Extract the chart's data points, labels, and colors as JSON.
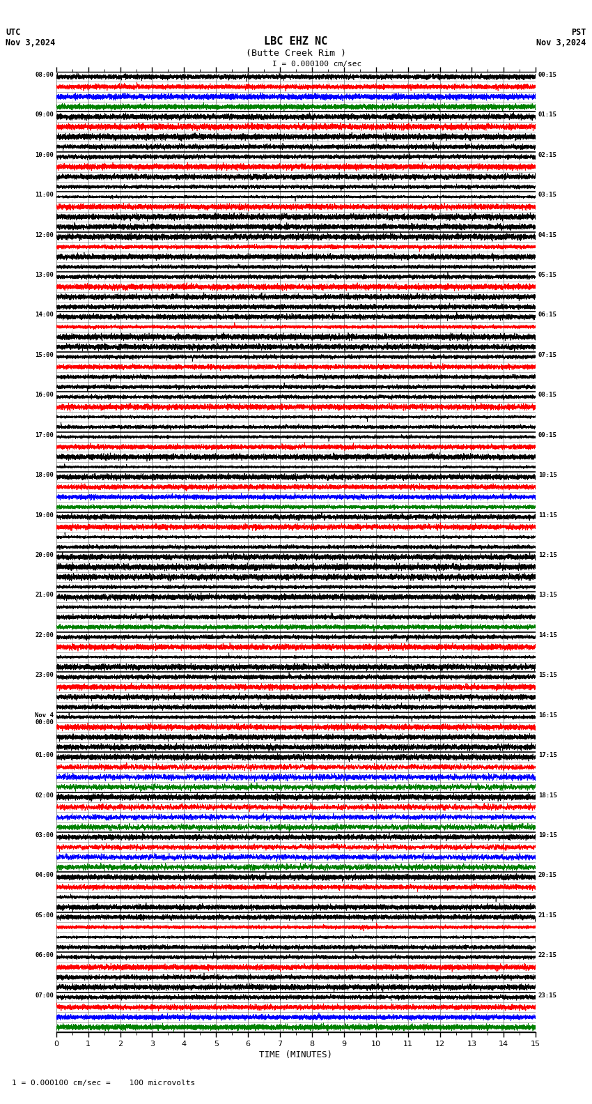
{
  "title_line1": "LBC EHZ NC",
  "title_line2": "(Butte Creek Rim )",
  "scale_label": "I = 0.000100 cm/sec",
  "left_label_top": "UTC",
  "left_label_date": "Nov 3,2024",
  "right_label_top": "PST",
  "right_label_date": "Nov 3,2024",
  "bottom_label": "TIME (MINUTES)",
  "footer_label": "1 = 0.000100 cm/sec =    100 microvolts",
  "background_color": "#ffffff",
  "grid_color_major": "#888888",
  "grid_color_minor": "#bbbbbb",
  "trace_color_black": "#000000",
  "trace_color_red": "#ff0000",
  "trace_color_blue": "#0000ff",
  "trace_color_green": "#008000",
  "num_minutes": 15,
  "num_rows": 24,
  "sub_traces_per_row": 4,
  "left_labels_utc": [
    "08:00",
    "09:00",
    "10:00",
    "11:00",
    "12:00",
    "13:00",
    "14:00",
    "15:00",
    "16:00",
    "17:00",
    "18:00",
    "19:00",
    "20:00",
    "21:00",
    "22:00",
    "23:00",
    "Nov 4\n00:00",
    "01:00",
    "02:00",
    "03:00",
    "04:00",
    "05:00",
    "06:00",
    "07:00"
  ],
  "right_labels_pst": [
    "00:15",
    "01:15",
    "02:15",
    "03:15",
    "04:15",
    "05:15",
    "06:15",
    "07:15",
    "08:15",
    "09:15",
    "10:15",
    "11:15",
    "12:15",
    "13:15",
    "14:15",
    "15:15",
    "16:15",
    "17:15",
    "18:15",
    "19:15",
    "20:15",
    "21:15",
    "22:15",
    "23:15"
  ],
  "row_sub_colors": {
    "0": [
      "black",
      "red",
      "blue",
      "green"
    ],
    "1": [
      "black",
      "red",
      "black",
      "black"
    ],
    "2": [
      "black",
      "red",
      "black",
      "black"
    ],
    "3": [
      "black",
      "red",
      "black",
      "black"
    ],
    "4": [
      "black",
      "red",
      "black",
      "black"
    ],
    "5": [
      "black",
      "red",
      "black",
      "black"
    ],
    "6": [
      "black",
      "red",
      "black",
      "black"
    ],
    "7": [
      "black",
      "red",
      "black",
      "black"
    ],
    "8": [
      "black",
      "red",
      "black",
      "black"
    ],
    "9": [
      "black",
      "red",
      "black",
      "black"
    ],
    "10": [
      "black",
      "red",
      "blue",
      "green"
    ],
    "11": [
      "black",
      "red",
      "black",
      "black"
    ],
    "12": [
      "black",
      "black",
      "black",
      "black"
    ],
    "13": [
      "black",
      "black",
      "black",
      "green"
    ],
    "14": [
      "black",
      "red",
      "black",
      "black"
    ],
    "15": [
      "black",
      "red",
      "black",
      "black"
    ],
    "16": [
      "black",
      "red",
      "black",
      "black"
    ],
    "17": [
      "black",
      "red",
      "blue",
      "green"
    ],
    "18": [
      "black",
      "red",
      "blue",
      "green"
    ],
    "19": [
      "black",
      "red",
      "blue",
      "green"
    ],
    "20": [
      "black",
      "red",
      "black",
      "black"
    ],
    "21": [
      "black",
      "red",
      "black",
      "black"
    ],
    "22": [
      "black",
      "red",
      "black",
      "black"
    ],
    "23": [
      "black",
      "red",
      "blue",
      "green"
    ]
  },
  "high_amplitude_rows": {
    "17_1": true,
    "17_2": true,
    "17_3": true,
    "18_1": true,
    "18_2": true,
    "18_3": true,
    "19_1": true,
    "19_2": true,
    "19_3": true
  }
}
